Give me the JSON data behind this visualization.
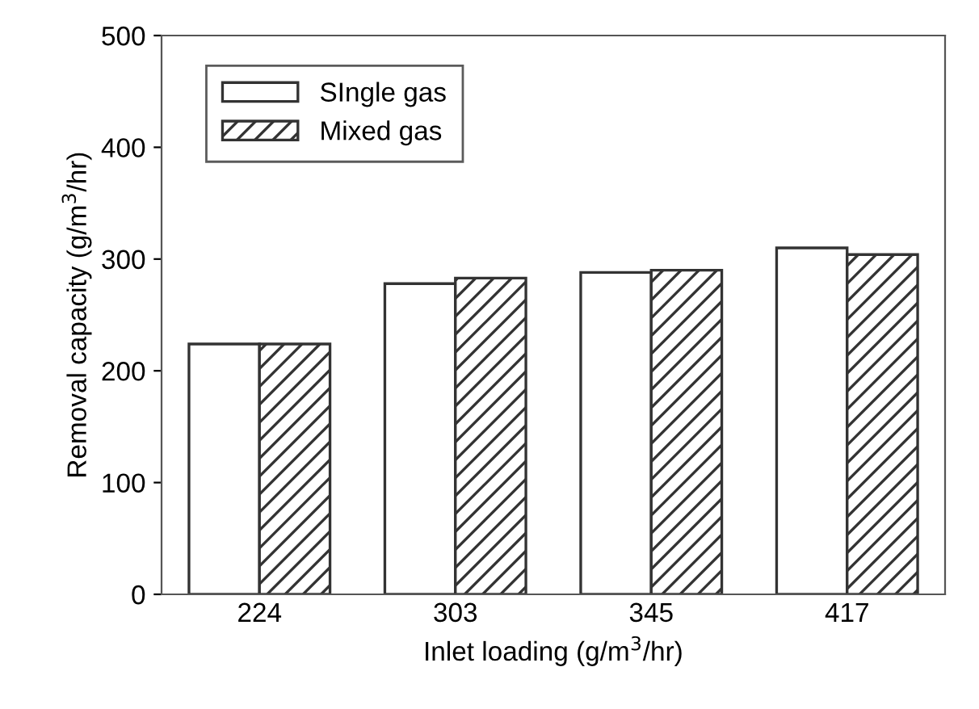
{
  "chart_data": {
    "type": "bar",
    "xlabel": "Inlet loading (g/m$^{3}$/hr)",
    "ylabel": "Removal capacity (g/m$^{3}$/hr)",
    "categories": [
      "224",
      "303",
      "345",
      "417"
    ],
    "series": [
      {
        "name": "SIngle gas",
        "color": "#ffffff",
        "values": [
          224,
          278,
          288,
          310
        ]
      },
      {
        "name": "Mixed gas",
        "color": "#333333",
        "values": [
          224,
          283,
          290,
          304
        ]
      }
    ],
    "ylim": [
      0,
      500
    ],
    "yticks": [
      0,
      100,
      200,
      300,
      400,
      500
    ],
    "grid": false,
    "legend": "top left"
  }
}
